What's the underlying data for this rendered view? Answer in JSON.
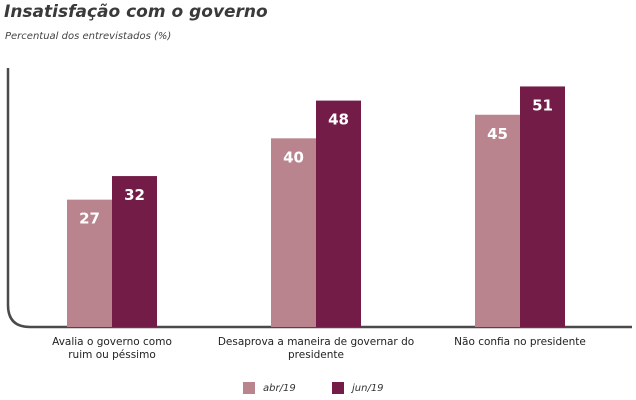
{
  "chart_data": {
    "type": "bar",
    "title": "Insatisfação com o governo",
    "subtitle": "Percentual dos entrevistados (%)",
    "categories": [
      [
        "Avalia o governo como",
        "ruim ou péssimo"
      ],
      [
        "Desaprova a maneira de governar do",
        "presidente"
      ],
      [
        "Não confia no presidente"
      ]
    ],
    "series": [
      {
        "name": "abr/19",
        "values": [
          27,
          40,
          45
        ],
        "color": "#b9848d"
      },
      {
        "name": "jun/19",
        "values": [
          32,
          48,
          51
        ],
        "color": "#731c47"
      }
    ],
    "ylim": [
      0,
      60
    ],
    "grid": false,
    "legend_position": "bottom"
  }
}
